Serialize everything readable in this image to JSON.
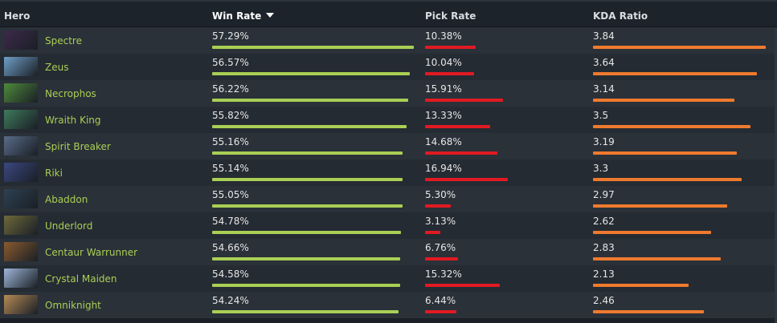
{
  "columns": {
    "hero": "Hero",
    "win_rate": "Win Rate",
    "pick_rate": "Pick Rate",
    "kda": "KDA Ratio"
  },
  "colors": {
    "win_bar": "#a9cf54",
    "pick_bar": "#e11a22",
    "kda_bar": "#ef7a2e",
    "hero_name": "#a9cf54"
  },
  "rows": [
    {
      "hero": "Spectre",
      "portrait": "spectre-portrait",
      "win_rate": "57.29%",
      "pick_rate": "10.38%",
      "kda": "3.84",
      "portrait_color": "#3d2a4a"
    },
    {
      "hero": "Zeus",
      "portrait": "zeus-portrait",
      "win_rate": "56.57%",
      "pick_rate": "10.04%",
      "kda": "3.64",
      "portrait_color": "#6f9fc7"
    },
    {
      "hero": "Necrophos",
      "portrait": "necrophos-portrait",
      "win_rate": "56.22%",
      "pick_rate": "15.91%",
      "kda": "3.14",
      "portrait_color": "#4e8a3a"
    },
    {
      "hero": "Wraith King",
      "portrait": "wraith-king-portrait",
      "win_rate": "55.82%",
      "pick_rate": "13.33%",
      "kda": "3.5",
      "portrait_color": "#3f7a5b"
    },
    {
      "hero": "Spirit Breaker",
      "portrait": "spirit-breaker-portrait",
      "win_rate": "55.16%",
      "pick_rate": "14.68%",
      "kda": "3.19",
      "portrait_color": "#5a6c88"
    },
    {
      "hero": "Riki",
      "portrait": "riki-portrait",
      "win_rate": "55.14%",
      "pick_rate": "16.94%",
      "kda": "3.3",
      "portrait_color": "#3b4780"
    },
    {
      "hero": "Abaddon",
      "portrait": "abaddon-portrait",
      "win_rate": "55.05%",
      "pick_rate": "5.30%",
      "kda": "2.97",
      "portrait_color": "#2e4152"
    },
    {
      "hero": "Underlord",
      "portrait": "underlord-portrait",
      "win_rate": "54.78%",
      "pick_rate": "3.13%",
      "kda": "2.62",
      "portrait_color": "#6e6a3a"
    },
    {
      "hero": "Centaur Warrunner",
      "portrait": "centaur-warrunner-portrait",
      "win_rate": "54.66%",
      "pick_rate": "6.76%",
      "kda": "2.83",
      "portrait_color": "#8a5a2e"
    },
    {
      "hero": "Crystal Maiden",
      "portrait": "crystal-maiden-portrait",
      "win_rate": "54.58%",
      "pick_rate": "15.32%",
      "kda": "2.13",
      "portrait_color": "#9fb7d8"
    },
    {
      "hero": "Omniknight",
      "portrait": "omniknight-portrait",
      "win_rate": "54.24%",
      "pick_rate": "6.44%",
      "kda": "2.46",
      "portrait_color": "#b68a55"
    }
  ]
}
